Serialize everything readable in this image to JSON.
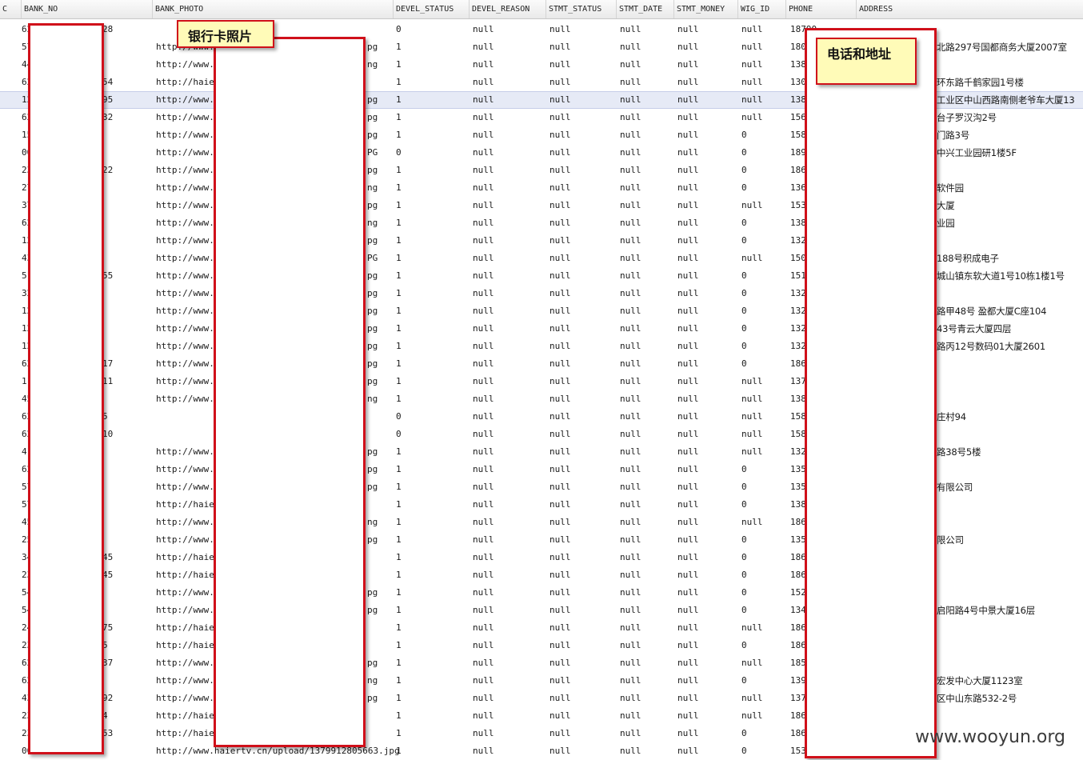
{
  "columns": {
    "c0": "C",
    "bank_no": "BANK_NO",
    "bank_photo": "BANK_PHOTO",
    "devel_status": "DEVEL_STATUS",
    "devel_reason": "DEVEL_REASON",
    "stmt_status": "STMT_STATUS",
    "stmt_date": "STMT_DATE",
    "stmt_money": "STMT_MONEY",
    "wig_id": "WIG_ID",
    "phone": "PHONE",
    "address": "ADDRESS"
  },
  "rows": [
    {
      "no": "62",
      "no_tail": "28",
      "photo": "",
      "photo_tail": "",
      "status": "0",
      "reason": "null",
      "stmt_status": "null",
      "stmt_date": "null",
      "stmt_money": "null",
      "wig": "null",
      "phone": "18790",
      "address": ""
    },
    {
      "no": "57",
      "no_tail": "",
      "photo": "http://www.h",
      "photo_tail": "pg",
      "status": "1",
      "reason": "null",
      "stmt_status": "null",
      "stmt_date": "null",
      "stmt_money": "null",
      "wig": "null",
      "phone": "1807",
      "address": "北路297号国都商务大厦2007室"
    },
    {
      "no": "44",
      "no_tail": "",
      "photo": "http://www.h",
      "photo_tail": "ng",
      "status": "1",
      "reason": "null",
      "stmt_status": "null",
      "stmt_date": "null",
      "stmt_money": "null",
      "wig": "null",
      "phone": "1381",
      "address": ""
    },
    {
      "no": "62",
      "no_tail": "54",
      "photo": "http://haier",
      "photo_tail": "",
      "status": "1",
      "reason": "null",
      "stmt_status": "null",
      "stmt_date": "null",
      "stmt_money": "null",
      "wig": "null",
      "phone": "1308",
      "address": "环东路千鹤家园1号楼"
    },
    {
      "no": "12",
      "no_tail": "95",
      "photo": "http://www.h",
      "photo_tail": "pg",
      "status": "1",
      "reason": "null",
      "stmt_status": "null",
      "stmt_date": "null",
      "stmt_money": "null",
      "wig": "null",
      "phone": "1381",
      "address": "工业区中山西路南侧老爷车大厦13"
    },
    {
      "no": "62",
      "no_tail": "32",
      "photo": "http://www.h",
      "photo_tail": "pg",
      "status": "1",
      "reason": "null",
      "stmt_status": "null",
      "stmt_date": "null",
      "stmt_money": "null",
      "wig": "null",
      "phone": "1569",
      "address": "台子罗汉沟2号"
    },
    {
      "no": "15",
      "no_tail": "",
      "photo": "http://www.h",
      "photo_tail": "pg",
      "status": "1",
      "reason": "null",
      "stmt_status": "null",
      "stmt_date": "null",
      "stmt_money": "null",
      "wig": "0",
      "phone": "1582",
      "address": "门路3号"
    },
    {
      "no": "00",
      "no_tail": "",
      "photo": "http://www.h",
      "photo_tail": "PG",
      "status": "0",
      "reason": "null",
      "stmt_status": "null",
      "stmt_date": "null",
      "stmt_money": "null",
      "wig": "0",
      "phone": "1892",
      "address": "中兴工业园研1楼5F"
    },
    {
      "no": "23",
      "no_tail": "22",
      "photo": "http://www.h",
      "photo_tail": "pg",
      "status": "1",
      "reason": "null",
      "stmt_status": "null",
      "stmt_date": "null",
      "stmt_money": "null",
      "wig": "0",
      "phone": "1866",
      "address": ""
    },
    {
      "no": "27",
      "no_tail": "",
      "photo": "http://www.h",
      "photo_tail": "ng",
      "status": "1",
      "reason": "null",
      "stmt_status": "null",
      "stmt_date": "null",
      "stmt_money": "null",
      "wig": "0",
      "phone": "1366",
      "address": "软件园"
    },
    {
      "no": "37",
      "no_tail": "",
      "photo": "http://www.h",
      "photo_tail": "pg",
      "status": "1",
      "reason": "null",
      "stmt_status": "null",
      "stmt_date": "null",
      "stmt_money": "null",
      "wig": "null",
      "phone": "1530",
      "address": "大厦"
    },
    {
      "no": "62",
      "no_tail": "",
      "photo": "http://www.h",
      "photo_tail": "ng",
      "status": "1",
      "reason": "null",
      "stmt_status": "null",
      "stmt_date": "null",
      "stmt_money": "null",
      "wig": "0",
      "phone": "1382",
      "address": "业园"
    },
    {
      "no": "12",
      "no_tail": "",
      "photo": "http://www.h",
      "photo_tail": "pg",
      "status": "1",
      "reason": "null",
      "stmt_status": "null",
      "stmt_date": "null",
      "stmt_money": "null",
      "wig": "0",
      "phone": "1321",
      "address": ""
    },
    {
      "no": "43",
      "no_tail": "",
      "photo": "http://www.h",
      "photo_tail": "PG",
      "status": "1",
      "reason": "null",
      "stmt_status": "null",
      "stmt_date": "null",
      "stmt_money": "null",
      "wig": "null",
      "phone": "1509",
      "address": "188号积成电子"
    },
    {
      "no": "51",
      "no_tail": "55",
      "photo": "http://www.h",
      "photo_tail": "pg",
      "status": "1",
      "reason": "null",
      "stmt_status": "null",
      "stmt_date": "null",
      "stmt_money": "null",
      "wig": "0",
      "phone": "1514",
      "address": "城山镇东软大道1号10栋1楼1号"
    },
    {
      "no": "32",
      "no_tail": "",
      "photo": "http://www.h",
      "photo_tail": "pg",
      "status": "1",
      "reason": "null",
      "stmt_status": "null",
      "stmt_date": "null",
      "stmt_money": "null",
      "wig": "0",
      "phone": "1324",
      "address": ""
    },
    {
      "no": "12",
      "no_tail": "",
      "photo": "http://www.h",
      "photo_tail": "pg",
      "status": "1",
      "reason": "null",
      "stmt_status": "null",
      "stmt_date": "null",
      "stmt_money": "null",
      "wig": "0",
      "phone": "1324",
      "address": "路甲48号 盈都大厦C座104"
    },
    {
      "no": "12",
      "no_tail": "",
      "photo": "http://www.h",
      "photo_tail": "pg",
      "status": "1",
      "reason": "null",
      "stmt_status": "null",
      "stmt_date": "null",
      "stmt_money": "null",
      "wig": "0",
      "phone": "1324",
      "address": "43号青云大厦四层"
    },
    {
      "no": "12",
      "no_tail": "",
      "photo": "http://www.h",
      "photo_tail": "pg",
      "status": "1",
      "reason": "null",
      "stmt_status": "null",
      "stmt_date": "null",
      "stmt_money": "null",
      "wig": "0",
      "phone": "1321",
      "address": "路丙12号数码01大厦2601"
    },
    {
      "no": "62",
      "no_tail": "17",
      "photo": "http://www.h",
      "photo_tail": "pg",
      "status": "1",
      "reason": "null",
      "stmt_status": "null",
      "stmt_date": "null",
      "stmt_money": "null",
      "wig": "0",
      "phone": "1866",
      "address": ""
    },
    {
      "no": "11",
      "no_tail": "11",
      "photo": "http://www.h",
      "photo_tail": "pg",
      "status": "1",
      "reason": "null",
      "stmt_status": "null",
      "stmt_date": "null",
      "stmt_money": "null",
      "wig": "null",
      "phone": "1374",
      "address": ""
    },
    {
      "no": "45",
      "no_tail": "",
      "photo": "http://www.h",
      "photo_tail": "ng",
      "status": "1",
      "reason": "null",
      "stmt_status": "null",
      "stmt_date": "null",
      "stmt_money": "null",
      "wig": "null",
      "phone": "1386",
      "address": ""
    },
    {
      "no": "62",
      "no_tail": "5",
      "photo": "",
      "photo_tail": "",
      "status": "0",
      "reason": "null",
      "stmt_status": "null",
      "stmt_date": "null",
      "stmt_money": "null",
      "wig": "null",
      "phone": "1585",
      "address": "庄村94"
    },
    {
      "no": "62",
      "no_tail": "10",
      "photo": "",
      "photo_tail": "",
      "status": "0",
      "reason": "null",
      "stmt_status": "null",
      "stmt_date": "null",
      "stmt_money": "null",
      "wig": "null",
      "phone": "1584",
      "address": ""
    },
    {
      "no": "41",
      "no_tail": "",
      "photo": "http://www.h",
      "photo_tail": "pg",
      "status": "1",
      "reason": "null",
      "stmt_status": "null",
      "stmt_date": "null",
      "stmt_money": "null",
      "wig": "null",
      "phone": "1328",
      "address": "路38号5楼"
    },
    {
      "no": "62",
      "no_tail": "",
      "photo": "http://www.h",
      "photo_tail": "pg",
      "status": "1",
      "reason": "null",
      "stmt_status": "null",
      "stmt_date": "null",
      "stmt_money": "null",
      "wig": "0",
      "phone": "1351",
      "address": ""
    },
    {
      "no": "57",
      "no_tail": "",
      "photo": "http://www.h",
      "photo_tail": "pg",
      "status": "1",
      "reason": "null",
      "stmt_status": "null",
      "stmt_date": "null",
      "stmt_money": "null",
      "wig": "0",
      "phone": "1351",
      "address": "有限公司"
    },
    {
      "no": "57",
      "no_tail": "",
      "photo": "http://haier",
      "photo_tail": "",
      "status": "1",
      "reason": "null",
      "stmt_status": "null",
      "stmt_date": "null",
      "stmt_money": "null",
      "wig": "0",
      "phone": "1380",
      "address": ""
    },
    {
      "no": "45",
      "no_tail": "",
      "photo": "http://www.h",
      "photo_tail": "ng",
      "status": "1",
      "reason": "null",
      "stmt_status": "null",
      "stmt_date": "null",
      "stmt_money": "null",
      "wig": "null",
      "phone": "1866",
      "address": ""
    },
    {
      "no": "25",
      "no_tail": "",
      "photo": "http://www.h",
      "photo_tail": "pg",
      "status": "1",
      "reason": "null",
      "stmt_status": "null",
      "stmt_date": "null",
      "stmt_money": "null",
      "wig": "0",
      "phone": "1351",
      "address": "限公司"
    },
    {
      "no": "34",
      "no_tail": "45",
      "photo": "http://haier",
      "photo_tail": "",
      "status": "1",
      "reason": "null",
      "stmt_status": "null",
      "stmt_date": "null",
      "stmt_money": "null",
      "wig": "0",
      "phone": "1866",
      "address": ""
    },
    {
      "no": "23",
      "no_tail": "45",
      "photo": "http://haier",
      "photo_tail": "",
      "status": "1",
      "reason": "null",
      "stmt_status": "null",
      "stmt_date": "null",
      "stmt_money": "null",
      "wig": "0",
      "phone": "1866",
      "address": ""
    },
    {
      "no": "54",
      "no_tail": "",
      "photo": "http://www.h",
      "photo_tail": "pg",
      "status": "1",
      "reason": "null",
      "stmt_status": "null",
      "stmt_date": "null",
      "stmt_money": "null",
      "wig": "0",
      "phone": "1522",
      "address": ""
    },
    {
      "no": "54",
      "no_tail": "",
      "photo": "http://www.h",
      "photo_tail": "pg",
      "status": "1",
      "reason": "null",
      "stmt_status": "null",
      "stmt_date": "null",
      "stmt_money": "null",
      "wig": "0",
      "phone": "1340",
      "address": "启阳路4号中景大厦16层"
    },
    {
      "no": "24",
      "no_tail": "75",
      "photo": "http://haier",
      "photo_tail": "",
      "status": "1",
      "reason": "null",
      "stmt_status": "null",
      "stmt_date": "null",
      "stmt_money": "null",
      "wig": "null",
      "phone": "1866",
      "address": ""
    },
    {
      "no": "23",
      "no_tail": "5",
      "photo": "http://haier",
      "photo_tail": "",
      "status": "1",
      "reason": "null",
      "stmt_status": "null",
      "stmt_date": "null",
      "stmt_money": "null",
      "wig": "0",
      "phone": "1866",
      "address": ""
    },
    {
      "no": "62",
      "no_tail": "37",
      "photo": "http://www.h",
      "photo_tail": "pg",
      "status": "1",
      "reason": "null",
      "stmt_status": "null",
      "stmt_date": "null",
      "stmt_money": "null",
      "wig": "null",
      "phone": "1855",
      "address": ""
    },
    {
      "no": "62",
      "no_tail": "",
      "photo": "http://www.h",
      "photo_tail": "ng",
      "status": "1",
      "reason": "null",
      "stmt_status": "null",
      "stmt_date": "null",
      "stmt_money": "null",
      "wig": "0",
      "phone": "1392",
      "address": "宏发中心大厦1123室"
    },
    {
      "no": "43",
      "no_tail": "92",
      "photo": "http://www.h",
      "photo_tail": "pg",
      "status": "1",
      "reason": "null",
      "stmt_status": "null",
      "stmt_date": "null",
      "stmt_money": "null",
      "wig": "null",
      "phone": "137",
      "address": "区中山东路532-2号"
    },
    {
      "no": "23",
      "no_tail": "4",
      "photo": "http://haier",
      "photo_tail": "",
      "status": "1",
      "reason": "null",
      "stmt_status": "null",
      "stmt_date": "null",
      "stmt_money": "null",
      "wig": "null",
      "phone": "1866",
      "address": ""
    },
    {
      "no": "23",
      "no_tail": "53",
      "photo": "http://haier",
      "photo_tail": "",
      "status": "1",
      "reason": "null",
      "stmt_status": "null",
      "stmt_date": "null",
      "stmt_money": "null",
      "wig": "0",
      "phone": "1866",
      "address": ""
    },
    {
      "no": "00",
      "no_tail": "",
      "photo": "http://www.haiertv.cn/upload/1379912805663.jpg",
      "photo_tail": "",
      "status": "1",
      "reason": "null",
      "stmt_status": "null",
      "stmt_date": "null",
      "stmt_money": "null",
      "wig": "0",
      "phone": "1531",
      "address": ""
    }
  ],
  "selected_row": 4,
  "annotations": {
    "bank_photo_label": "银行卡照片",
    "phone_address_label": "电话和地址"
  },
  "watermark": "www.wooyun.org",
  "colors": {
    "redaction_border": "#d0101a",
    "note_background": "#fffbb8",
    "selected_row": "#e6eaf6"
  }
}
